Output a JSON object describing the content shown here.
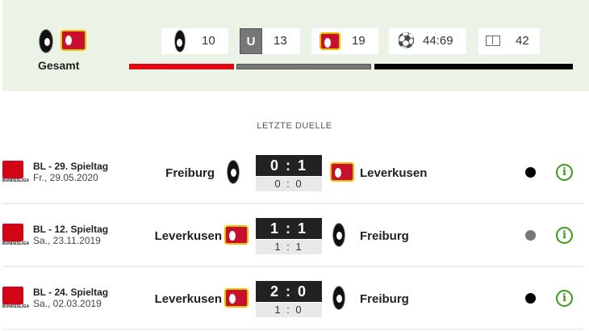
{
  "summary": {
    "label": "Gesamt",
    "freiburg_wins": "10",
    "draws_badge": "U",
    "draws": "13",
    "leverkusen_wins": "19",
    "goals": "44:69",
    "matches": "42",
    "bar_colors": {
      "freiburg": "#e30613",
      "draw": "#777777",
      "leverkusen": "#000000"
    }
  },
  "section_title": "LETZTE DUELLE",
  "matches": [
    {
      "competition": "BL - 29. Spieltag",
      "date": "Fr., 29.05.2020",
      "home": "Freiburg",
      "away": "Leverkusen",
      "home_crest": "freiburg",
      "away_crest": "leverkusen",
      "score": "0 : 1",
      "halftime": "0 : 0",
      "dot_color": "#000000"
    },
    {
      "competition": "BL - 12. Spieltag",
      "date": "Sa., 23.11.2019",
      "home": "Leverkusen",
      "away": "Freiburg",
      "home_crest": "leverkusen",
      "away_crest": "freiburg",
      "score": "1 : 1",
      "halftime": "1 : 1",
      "dot_color": "#777777"
    },
    {
      "competition": "BL - 24. Spieltag",
      "date": "Sa., 02.03.2019",
      "home": "Leverkusen",
      "away": "Freiburg",
      "home_crest": "leverkusen",
      "away_crest": "freiburg",
      "score": "2 : 0",
      "halftime": "1 : 0",
      "dot_color": "#000000"
    }
  ],
  "league_logo_text": "BUNDESLIGA",
  "info_glyph": "i"
}
